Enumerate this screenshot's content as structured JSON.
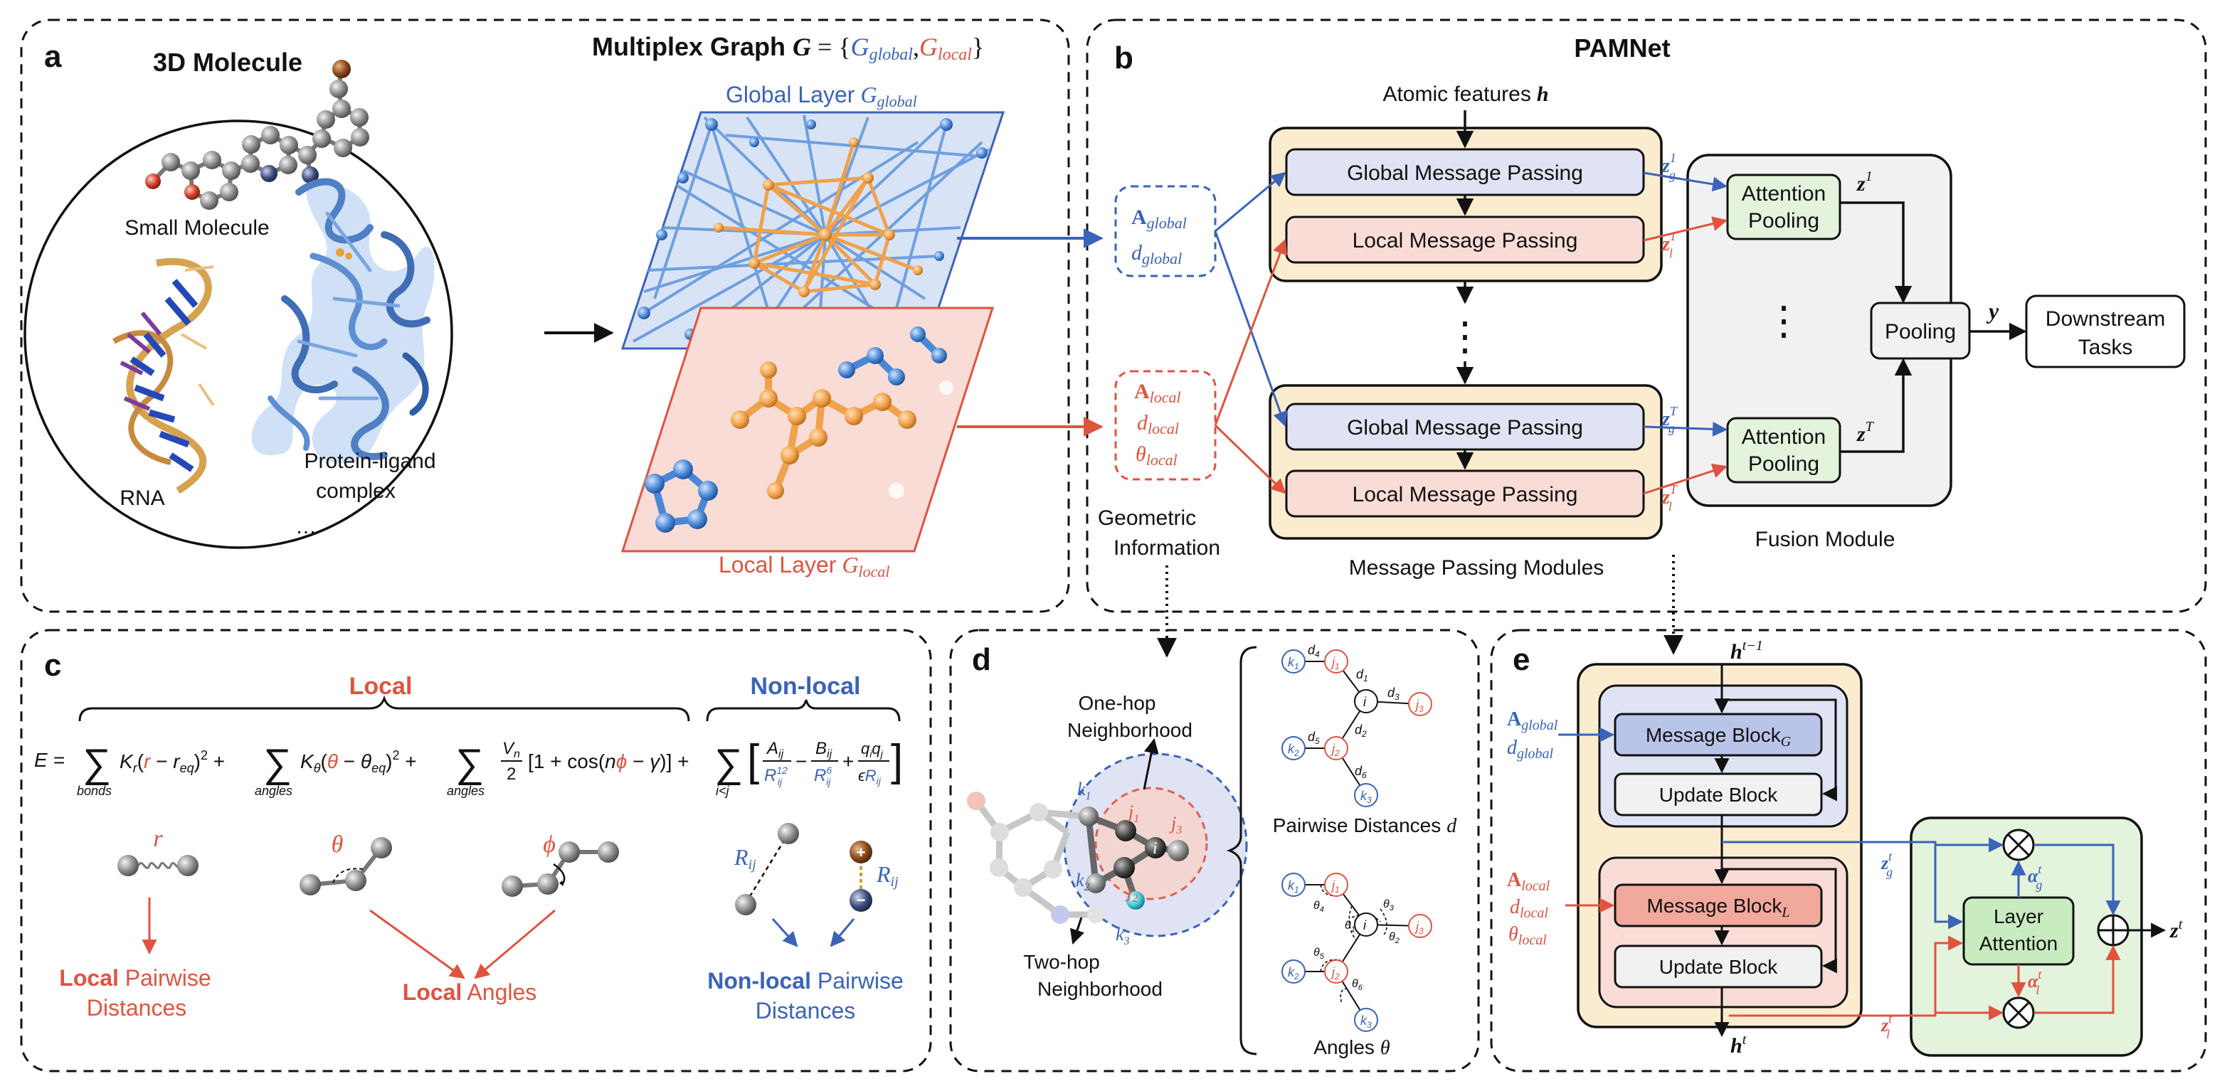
{
  "panels": {
    "a": {
      "letter": "a",
      "title": "3D Molecule",
      "small_molecule": "Small Molecule",
      "rna": "RNA",
      "protein_line1": "Protein-ligand",
      "protein_line2": "complex",
      "ellipsis": "…",
      "multiplex_title": "Multiplex Graph",
      "multiplex_formula": "G = {G_global, G_local}",
      "multiplex_G": "G",
      "multiplex_eq": " = {",
      "multiplex_gg": "G",
      "multiplex_gg_sub": "global",
      "multiplex_comma": ",",
      "multiplex_gl": "G",
      "multiplex_gl_sub": "local",
      "multiplex_close": "}",
      "global_layer": "Global Layer",
      "global_layer_sym": "G",
      "global_layer_sub": "global",
      "local_layer": "Local Layer",
      "local_layer_sym": "G",
      "local_layer_sub": "local"
    },
    "b": {
      "letter": "b",
      "title": "PAMNet",
      "atomic_features": "Atomic features",
      "atomic_h": "h",
      "global_mp": "Global Message Passing",
      "local_mp": "Local Message Passing",
      "a_global": "A",
      "a_global_sub": "global",
      "d_global": "d",
      "d_global_sub": "global",
      "a_local": "A",
      "a_local_sub": "local",
      "d_local": "d",
      "d_local_sub": "local",
      "theta_local": "θ",
      "theta_local_sub": "local",
      "geo_info_1": "Geometric",
      "geo_info_2": "Information",
      "mp_modules": "Message Passing Modules",
      "attn_pool_1": "Attention",
      "attn_pool_2": "Pooling",
      "pooling": "Pooling",
      "downstream_1": "Downstream",
      "downstream_2": "Tasks",
      "fusion": "Fusion Module",
      "z_g1": "z",
      "z_g1_sup": "1",
      "z_g1_sub": "g",
      "z_l1": "z",
      "z_l1_sup": "1",
      "z_l1_sub": "l",
      "z_gT": "z",
      "z_gT_sup": "T",
      "z_gT_sub": "g",
      "z_lT": "z",
      "z_lT_sup": "T",
      "z_lT_sub": "l",
      "z1": "z",
      "z1_sup": "1",
      "zT": "z",
      "zT_sup": "T",
      "y": "y",
      "vdots": "⋮"
    },
    "c": {
      "letter": "c",
      "local": "Local",
      "nonlocal": "Non-local",
      "energy": "E = Σ_bonds K_r(r − r_eq)² + Σ_angles K_θ(θ − θ_eq)² + Σ_angles V_n/2 [1 + cos(nϕ − γ)] + Σ_{i<j} [A_ij/R_ij^12 − B_ij/R_ij^6 + q_i q_j/(ϵR_ij)]",
      "r": "r",
      "theta": "θ",
      "phi": "ϕ",
      "rij": "R",
      "rij_sub": "ij",
      "local_pairwise_1a": "Local",
      "local_pairwise_1b": " Pairwise",
      "local_pairwise_2": "Distances",
      "local_angles_a": "Local",
      "local_angles_b": " Angles",
      "nonlocal_pairwise_1a": "Non-local",
      "nonlocal_pairwise_1b": " Pairwise",
      "nonlocal_pairwise_2": "Distances"
    },
    "d": {
      "letter": "d",
      "one_hop_1": "One-hop",
      "one_hop_2": "Neighborhood",
      "two_hop_1": "Two-hop",
      "two_hop_2": "Neighborhood",
      "pairwise": "Pairwise Distances",
      "pairwise_sym": "d",
      "angles": "Angles",
      "angles_sym": "θ"
    },
    "e": {
      "letter": "e",
      "h_prev": "h",
      "h_prev_sup": "t−1",
      "h_t": "h",
      "h_t_sup": "t",
      "message_block_g": "Message Block",
      "message_block_g_sub": "G",
      "message_block_l": "Message Block",
      "message_block_l_sub": "L",
      "update_block": "Update Block",
      "layer_attention_1": "Layer",
      "layer_attention_2": "Attention",
      "a_global": "A",
      "a_global_sub": "global",
      "d_global": "d",
      "d_global_sub": "global",
      "a_local": "A",
      "a_local_sub": "local",
      "d_local": "d",
      "d_local_sub": "local",
      "theta_local": "θ",
      "theta_local_sub": "local",
      "zg": "z",
      "zg_sup": "t",
      "zg_sub": "g",
      "zl": "z",
      "zl_sup": "t",
      "zl_sub": "l",
      "alpha_g": "α",
      "alpha_g_sup": "t",
      "alpha_g_sub": "g",
      "alpha_l": "α",
      "alpha_l_sup": "t",
      "alpha_l_sub": "l",
      "zt": "z",
      "zt_sup": "t"
    }
  },
  "colors": {
    "global_blue": "#3a63b9",
    "local_red": "#e0533f",
    "mp_bg": "#fbecd0",
    "mp_border": "#f2c77a",
    "global_fill": "#dfe3f3",
    "local_fill": "#f9dcd6",
    "attn_fill": "#e3f3dc",
    "fusion_fill": "#f1f1f1",
    "orange_atoms": "#f0a24b",
    "blue_atoms": "#4a87d6"
  },
  "icons": [
    "right-arrow-icon",
    "down-arrow-icon",
    "otimes-icon",
    "oplus-icon",
    "brace-icon"
  ]
}
